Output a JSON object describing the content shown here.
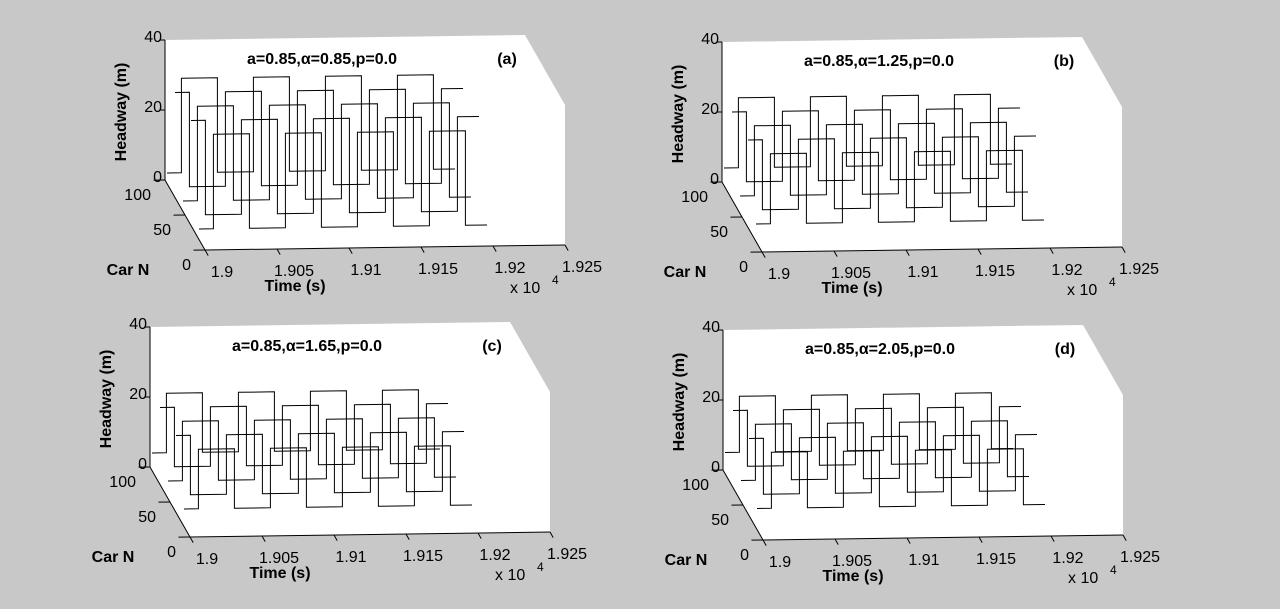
{
  "chart_data": [
    {
      "type": "line3d",
      "title": "a=0.85,α=0.85,p=0.0",
      "panel_label": "(a)",
      "xlabel": "Time (s)",
      "ylabel": "Car N",
      "zlabel": "Headway (m)",
      "x_multiplier": "x 10",
      "x_multiplier_exp": "4",
      "color": "#000000",
      "xlim": [
        19000,
        19250
      ],
      "xticks": [
        {
          "value": 19000,
          "label": "1.9"
        },
        {
          "value": 19050,
          "label": "1.905"
        },
        {
          "value": 19100,
          "label": "1.91"
        },
        {
          "value": 19150,
          "label": "1.915"
        },
        {
          "value": 19200,
          "label": "1.92"
        },
        {
          "value": 19250,
          "label": "1.925"
        }
      ],
      "ylim": [
        0,
        100
      ],
      "yticks": [
        0,
        50,
        100
      ],
      "zlim": [
        0,
        40
      ],
      "zticks": [
        0,
        20,
        40
      ],
      "x": [
        19000,
        19010,
        19010,
        19035,
        19035,
        19060,
        19060,
        19085,
        19085,
        19110,
        19110,
        19135,
        19135,
        19160,
        19160,
        19185,
        19185,
        19200
      ],
      "series": [
        {
          "car": 15,
          "values": [
            3,
            3,
            30,
            30,
            3,
            3,
            30,
            30,
            3,
            3,
            30,
            30,
            3,
            3,
            30,
            30,
            3,
            3
          ]
        },
        {
          "car": 35,
          "values": [
            30,
            30,
            3,
            3,
            30,
            30,
            3,
            3,
            30,
            30,
            3,
            3,
            30,
            30,
            3,
            3,
            30,
            30
          ]
        },
        {
          "car": 55,
          "values": [
            3,
            3,
            30,
            30,
            3,
            3,
            30,
            30,
            3,
            3,
            30,
            30,
            3,
            3,
            30,
            30,
            3,
            3
          ]
        },
        {
          "car": 75,
          "values": [
            30,
            30,
            3,
            3,
            30,
            30,
            3,
            3,
            30,
            30,
            3,
            3,
            30,
            30,
            3,
            3,
            30,
            30
          ]
        },
        {
          "car": 95,
          "values": [
            3,
            3,
            30,
            30,
            3,
            3,
            30,
            30,
            3,
            3,
            30,
            30,
            3,
            3,
            30,
            30,
            3,
            3
          ]
        }
      ]
    },
    {
      "type": "line3d",
      "title": "a=0.85,α=1.25,p=0.0",
      "panel_label": "(b)",
      "xlabel": "Time (s)",
      "ylabel": "Car N",
      "zlabel": "Headway (m)",
      "x_multiplier": "x 10",
      "x_multiplier_exp": "4",
      "color": "#000000",
      "xlim": [
        19000,
        19250
      ],
      "xticks": [
        {
          "value": 19000,
          "label": "1.9"
        },
        {
          "value": 19050,
          "label": "1.905"
        },
        {
          "value": 19100,
          "label": "1.91"
        },
        {
          "value": 19150,
          "label": "1.915"
        },
        {
          "value": 19200,
          "label": "1.92"
        },
        {
          "value": 19250,
          "label": "1.925"
        }
      ],
      "ylim": [
        0,
        100
      ],
      "yticks": [
        0,
        50,
        100
      ],
      "zlim": [
        0,
        40
      ],
      "zticks": [
        0,
        20,
        40
      ],
      "x": [
        19000,
        19010,
        19010,
        19035,
        19035,
        19060,
        19060,
        19085,
        19085,
        19110,
        19110,
        19135,
        19135,
        19160,
        19160,
        19185,
        19185,
        19200
      ],
      "series": [
        {
          "car": 15,
          "values": [
            5,
            5,
            25,
            25,
            5,
            5,
            25,
            25,
            5,
            5,
            25,
            25,
            5,
            5,
            25,
            25,
            5,
            5
          ]
        },
        {
          "car": 35,
          "values": [
            25,
            25,
            5,
            5,
            25,
            25,
            5,
            5,
            25,
            25,
            5,
            5,
            25,
            25,
            5,
            5,
            25,
            25
          ]
        },
        {
          "car": 55,
          "values": [
            5,
            5,
            25,
            25,
            5,
            5,
            25,
            25,
            5,
            5,
            25,
            25,
            5,
            5,
            25,
            25,
            5,
            5
          ]
        },
        {
          "car": 75,
          "values": [
            25,
            25,
            5,
            5,
            25,
            25,
            5,
            5,
            25,
            25,
            5,
            5,
            25,
            25,
            5,
            5,
            25,
            25
          ]
        },
        {
          "car": 95,
          "values": [
            5,
            5,
            25,
            25,
            5,
            5,
            25,
            25,
            5,
            5,
            25,
            25,
            5,
            5,
            25,
            25,
            5,
            5
          ]
        }
      ]
    },
    {
      "type": "line3d",
      "title": "a=0.85,α=1.65,p=0.0",
      "panel_label": "(c)",
      "xlabel": "Time (s)",
      "ylabel": "Car N",
      "zlabel": "Headway (m)",
      "x_multiplier": "x 10",
      "x_multiplier_exp": "4",
      "color": "#000000",
      "xlim": [
        19000,
        19250
      ],
      "xticks": [
        {
          "value": 19000,
          "label": "1.9"
        },
        {
          "value": 19050,
          "label": "1.905"
        },
        {
          "value": 19100,
          "label": "1.91"
        },
        {
          "value": 19150,
          "label": "1.915"
        },
        {
          "value": 19200,
          "label": "1.92"
        },
        {
          "value": 19250,
          "label": "1.925"
        }
      ],
      "ylim": [
        0,
        100
      ],
      "yticks": [
        0,
        50,
        100
      ],
      "zlim": [
        0,
        40
      ],
      "zticks": [
        0,
        20,
        40
      ],
      "x": [
        19000,
        19010,
        19010,
        19035,
        19035,
        19060,
        19060,
        19085,
        19085,
        19110,
        19110,
        19135,
        19135,
        19160,
        19160,
        19185,
        19185,
        19200
      ],
      "series": [
        {
          "car": 15,
          "values": [
            5,
            5,
            22,
            22,
            5,
            5,
            22,
            22,
            5,
            5,
            22,
            22,
            5,
            5,
            22,
            22,
            5,
            5
          ]
        },
        {
          "car": 35,
          "values": [
            22,
            22,
            5,
            5,
            22,
            22,
            5,
            5,
            22,
            22,
            5,
            5,
            22,
            22,
            5,
            5,
            22,
            22
          ]
        },
        {
          "car": 55,
          "values": [
            5,
            5,
            22,
            22,
            5,
            5,
            22,
            22,
            5,
            5,
            22,
            22,
            5,
            5,
            22,
            22,
            5,
            5
          ]
        },
        {
          "car": 75,
          "values": [
            22,
            22,
            5,
            5,
            22,
            22,
            5,
            5,
            22,
            22,
            5,
            5,
            22,
            22,
            5,
            5,
            22,
            22
          ]
        },
        {
          "car": 95,
          "values": [
            5,
            5,
            22,
            22,
            5,
            5,
            22,
            22,
            5,
            5,
            22,
            22,
            5,
            5,
            22,
            22,
            5,
            5
          ]
        }
      ]
    },
    {
      "type": "line3d",
      "title": "a=0.85,α=2.05,p=0.0",
      "panel_label": "(d)",
      "xlabel": "Time (s)",
      "ylabel": "Car N",
      "zlabel": "Headway (m)",
      "x_multiplier": "x 10",
      "x_multiplier_exp": "4",
      "color": "#000000",
      "xlim": [
        19000,
        19250
      ],
      "xticks": [
        {
          "value": 19000,
          "label": "1.9"
        },
        {
          "value": 19050,
          "label": "1.905"
        },
        {
          "value": 19100,
          "label": "1.91"
        },
        {
          "value": 19150,
          "label": "1.915"
        },
        {
          "value": 19200,
          "label": "1.92"
        },
        {
          "value": 19250,
          "label": "1.925"
        }
      ],
      "ylim": [
        0,
        100
      ],
      "yticks": [
        0,
        50,
        100
      ],
      "zlim": [
        0,
        40
      ],
      "zticks": [
        0,
        20,
        40
      ],
      "x": [
        19000,
        19010,
        19010,
        19035,
        19035,
        19060,
        19060,
        19085,
        19085,
        19110,
        19110,
        19135,
        19135,
        19160,
        19160,
        19185,
        19185,
        19200
      ],
      "series": [
        {
          "car": 15,
          "values": [
            6,
            6,
            22,
            22,
            6,
            6,
            22,
            22,
            6,
            6,
            22,
            22,
            6,
            6,
            22,
            22,
            6,
            6
          ]
        },
        {
          "car": 35,
          "values": [
            22,
            22,
            6,
            6,
            22,
            22,
            6,
            6,
            22,
            22,
            6,
            6,
            22,
            22,
            6,
            6,
            22,
            22
          ]
        },
        {
          "car": 55,
          "values": [
            6,
            6,
            22,
            22,
            6,
            6,
            22,
            22,
            6,
            6,
            22,
            22,
            6,
            6,
            22,
            22,
            6,
            6
          ]
        },
        {
          "car": 75,
          "values": [
            22,
            22,
            6,
            6,
            22,
            22,
            6,
            6,
            22,
            22,
            6,
            6,
            22,
            22,
            6,
            6,
            22,
            22
          ]
        },
        {
          "car": 95,
          "values": [
            6,
            6,
            22,
            22,
            6,
            6,
            22,
            22,
            6,
            6,
            22,
            22,
            6,
            6,
            22,
            22,
            6,
            6
          ]
        }
      ]
    }
  ]
}
